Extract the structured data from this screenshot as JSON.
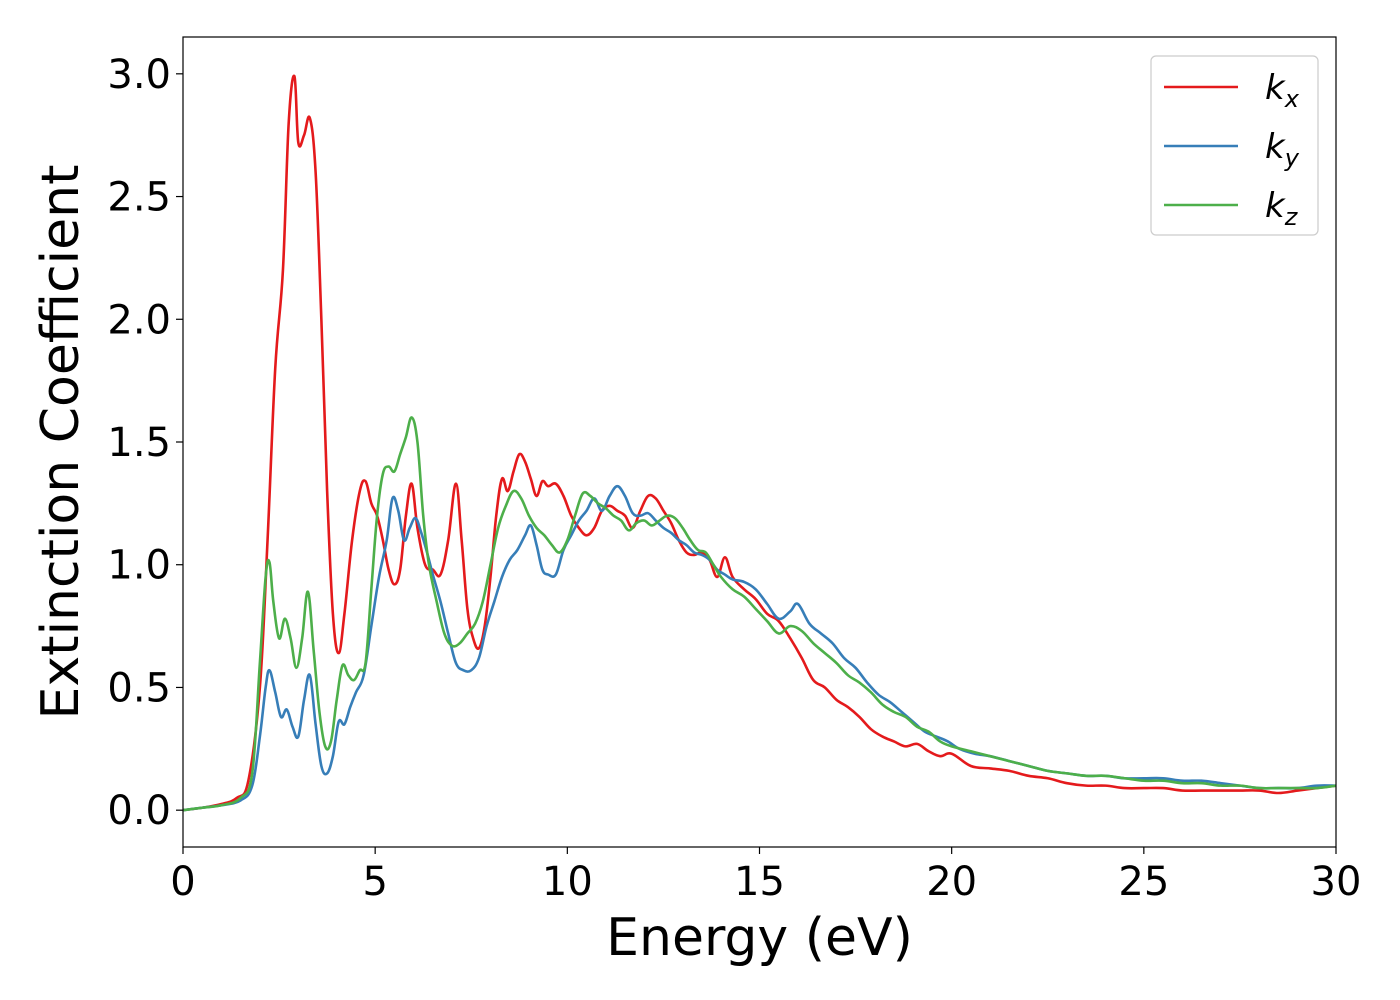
{
  "chart_data": {
    "type": "line",
    "xlabel": "Energy (eV)",
    "ylabel": "Extinction Coefficient",
    "xlim": [
      0,
      30
    ],
    "ylim": [
      -0.15,
      3.15
    ],
    "xticks": [
      0,
      5,
      10,
      15,
      20,
      25,
      30
    ],
    "xtick_labels": [
      "0",
      "5",
      "10",
      "15",
      "20",
      "25",
      "30"
    ],
    "yticks": [
      0.0,
      0.5,
      1.0,
      1.5,
      2.0,
      2.5,
      3.0
    ],
    "ytick_labels": [
      "0.0",
      "0.5",
      "1.0",
      "1.5",
      "2.0",
      "2.5",
      "3.0"
    ],
    "grid": false,
    "legend_position": "top-right",
    "series": [
      {
        "name": "k",
        "subscript": "x",
        "color": "#e41a1c",
        "x": [
          0,
          0.5,
          1.0,
          1.4,
          1.7,
          2.0,
          2.2,
          2.4,
          2.6,
          2.75,
          2.9,
          3.0,
          3.15,
          3.3,
          3.45,
          3.6,
          3.75,
          3.9,
          4.05,
          4.2,
          4.4,
          4.6,
          4.75,
          4.9,
          5.05,
          5.2,
          5.35,
          5.5,
          5.65,
          5.8,
          5.95,
          6.1,
          6.3,
          6.5,
          6.7,
          6.9,
          7.1,
          7.25,
          7.4,
          7.55,
          7.7,
          7.85,
          8.0,
          8.15,
          8.3,
          8.45,
          8.6,
          8.75,
          8.9,
          9.05,
          9.2,
          9.35,
          9.5,
          9.7,
          9.9,
          10.1,
          10.3,
          10.5,
          10.7,
          10.9,
          11.1,
          11.3,
          11.5,
          11.7,
          11.9,
          12.1,
          12.3,
          12.5,
          12.7,
          12.9,
          13.1,
          13.3,
          13.5,
          13.7,
          13.9,
          14.1,
          14.3,
          14.6,
          14.9,
          15.2,
          15.5,
          15.8,
          16.1,
          16.4,
          16.7,
          17.0,
          17.3,
          17.6,
          17.9,
          18.2,
          18.5,
          18.8,
          19.1,
          19.4,
          19.7,
          20.0,
          20.5,
          21.0,
          21.5,
          22.0,
          22.5,
          23.0,
          23.5,
          24.0,
          24.5,
          25.0,
          25.5,
          26.0,
          26.5,
          27.0,
          27.5,
          28.0,
          28.5,
          29.0,
          29.5,
          30.0
        ],
        "values": [
          0.0,
          0.01,
          0.025,
          0.05,
          0.12,
          0.5,
          1.1,
          1.8,
          2.2,
          2.8,
          2.99,
          2.72,
          2.75,
          2.82,
          2.6,
          2.0,
          1.3,
          0.8,
          0.64,
          0.8,
          1.1,
          1.3,
          1.34,
          1.25,
          1.2,
          1.1,
          0.98,
          0.92,
          0.98,
          1.2,
          1.33,
          1.15,
          1.0,
          0.98,
          0.96,
          1.1,
          1.33,
          1.1,
          0.82,
          0.7,
          0.66,
          0.75,
          0.95,
          1.2,
          1.35,
          1.3,
          1.38,
          1.45,
          1.42,
          1.35,
          1.28,
          1.34,
          1.32,
          1.33,
          1.28,
          1.2,
          1.15,
          1.12,
          1.15,
          1.22,
          1.24,
          1.22,
          1.2,
          1.15,
          1.22,
          1.28,
          1.27,
          1.22,
          1.17,
          1.1,
          1.05,
          1.04,
          1.05,
          1.02,
          0.95,
          1.03,
          0.95,
          0.9,
          0.86,
          0.8,
          0.77,
          0.7,
          0.62,
          0.53,
          0.5,
          0.45,
          0.42,
          0.38,
          0.33,
          0.3,
          0.28,
          0.26,
          0.27,
          0.24,
          0.22,
          0.23,
          0.18,
          0.17,
          0.16,
          0.14,
          0.13,
          0.11,
          0.1,
          0.1,
          0.09,
          0.09,
          0.09,
          0.08,
          0.08,
          0.08,
          0.08,
          0.08,
          0.07,
          0.08,
          0.09,
          0.1
        ]
      },
      {
        "name": "k",
        "subscript": "y",
        "color": "#377eb8",
        "x": [
          0,
          0.5,
          1.0,
          1.5,
          1.8,
          2.0,
          2.15,
          2.25,
          2.4,
          2.55,
          2.7,
          2.85,
          3.0,
          3.15,
          3.3,
          3.45,
          3.6,
          3.75,
          3.9,
          4.05,
          4.2,
          4.35,
          4.5,
          4.7,
          4.9,
          5.1,
          5.3,
          5.45,
          5.6,
          5.75,
          5.9,
          6.05,
          6.2,
          6.35,
          6.5,
          6.7,
          6.9,
          7.1,
          7.3,
          7.5,
          7.7,
          7.9,
          8.1,
          8.3,
          8.5,
          8.7,
          8.9,
          9.05,
          9.2,
          9.35,
          9.5,
          9.7,
          9.9,
          10.1,
          10.3,
          10.5,
          10.7,
          10.9,
          11.1,
          11.3,
          11.5,
          11.7,
          11.9,
          12.1,
          12.3,
          12.5,
          12.7,
          12.9,
          13.1,
          13.3,
          13.5,
          13.7,
          13.9,
          14.1,
          14.3,
          14.6,
          14.9,
          15.2,
          15.5,
          15.8,
          16.0,
          16.3,
          16.6,
          16.9,
          17.2,
          17.5,
          17.8,
          18.1,
          18.4,
          18.7,
          19.0,
          19.3,
          19.6,
          19.9,
          20.2,
          20.6,
          21.0,
          21.5,
          22.0,
          22.5,
          23.0,
          23.5,
          24.0,
          24.5,
          25.0,
          25.5,
          26.0,
          26.5,
          27.0,
          27.5,
          28.0,
          28.5,
          29.0,
          29.5,
          30.0
        ],
        "values": [
          0.0,
          0.01,
          0.02,
          0.04,
          0.1,
          0.3,
          0.5,
          0.57,
          0.48,
          0.38,
          0.41,
          0.34,
          0.3,
          0.45,
          0.55,
          0.35,
          0.18,
          0.15,
          0.22,
          0.36,
          0.35,
          0.42,
          0.48,
          0.55,
          0.75,
          0.95,
          1.1,
          1.27,
          1.22,
          1.1,
          1.15,
          1.19,
          1.13,
          1.05,
          0.96,
          0.85,
          0.72,
          0.6,
          0.57,
          0.57,
          0.62,
          0.75,
          0.85,
          0.95,
          1.02,
          1.06,
          1.12,
          1.16,
          1.08,
          0.98,
          0.96,
          0.96,
          1.06,
          1.12,
          1.18,
          1.22,
          1.27,
          1.22,
          1.28,
          1.32,
          1.28,
          1.21,
          1.2,
          1.21,
          1.18,
          1.15,
          1.13,
          1.1,
          1.08,
          1.05,
          1.04,
          1.02,
          0.98,
          0.96,
          0.94,
          0.93,
          0.9,
          0.84,
          0.78,
          0.81,
          0.84,
          0.76,
          0.72,
          0.68,
          0.62,
          0.58,
          0.52,
          0.47,
          0.44,
          0.4,
          0.36,
          0.32,
          0.3,
          0.28,
          0.25,
          0.23,
          0.22,
          0.2,
          0.18,
          0.16,
          0.15,
          0.14,
          0.14,
          0.13,
          0.13,
          0.13,
          0.12,
          0.12,
          0.11,
          0.1,
          0.09,
          0.09,
          0.09,
          0.1,
          0.1
        ]
      },
      {
        "name": "k",
        "subscript": "z",
        "color": "#4daf4a",
        "x": [
          0,
          0.5,
          1.0,
          1.5,
          1.8,
          2.0,
          2.15,
          2.25,
          2.35,
          2.5,
          2.65,
          2.8,
          2.95,
          3.1,
          3.25,
          3.4,
          3.55,
          3.7,
          3.85,
          4.0,
          4.15,
          4.3,
          4.45,
          4.6,
          4.75,
          4.9,
          5.05,
          5.2,
          5.35,
          5.5,
          5.65,
          5.8,
          5.95,
          6.1,
          6.25,
          6.4,
          6.6,
          6.8,
          7.0,
          7.2,
          7.4,
          7.6,
          7.8,
          8.0,
          8.2,
          8.4,
          8.6,
          8.8,
          9.0,
          9.2,
          9.4,
          9.6,
          9.8,
          10.0,
          10.2,
          10.4,
          10.6,
          10.8,
          11.0,
          11.2,
          11.4,
          11.6,
          11.8,
          12.0,
          12.2,
          12.4,
          12.6,
          12.8,
          13.0,
          13.2,
          13.4,
          13.6,
          13.8,
          14.0,
          14.3,
          14.6,
          14.9,
          15.2,
          15.5,
          15.8,
          16.1,
          16.4,
          16.7,
          17.0,
          17.3,
          17.6,
          17.9,
          18.2,
          18.5,
          18.8,
          19.1,
          19.4,
          19.7,
          20.0,
          20.5,
          21.0,
          21.5,
          22.0,
          22.5,
          23.0,
          23.5,
          24.0,
          24.5,
          25.0,
          25.5,
          26.0,
          26.5,
          27.0,
          27.5,
          28.0,
          28.5,
          29.0,
          29.5,
          30.0
        ],
        "values": [
          0.0,
          0.01,
          0.02,
          0.05,
          0.15,
          0.6,
          0.95,
          1.01,
          0.85,
          0.7,
          0.78,
          0.7,
          0.58,
          0.7,
          0.89,
          0.65,
          0.4,
          0.26,
          0.28,
          0.45,
          0.59,
          0.55,
          0.53,
          0.57,
          0.6,
          0.9,
          1.2,
          1.37,
          1.4,
          1.38,
          1.45,
          1.52,
          1.6,
          1.5,
          1.2,
          1.0,
          0.85,
          0.72,
          0.67,
          0.68,
          0.72,
          0.76,
          0.85,
          1.0,
          1.15,
          1.24,
          1.3,
          1.27,
          1.2,
          1.15,
          1.12,
          1.08,
          1.05,
          1.1,
          1.2,
          1.29,
          1.28,
          1.25,
          1.23,
          1.2,
          1.18,
          1.14,
          1.17,
          1.18,
          1.16,
          1.18,
          1.2,
          1.19,
          1.15,
          1.1,
          1.06,
          1.05,
          1.0,
          0.95,
          0.9,
          0.87,
          0.82,
          0.77,
          0.72,
          0.75,
          0.73,
          0.68,
          0.64,
          0.6,
          0.55,
          0.52,
          0.48,
          0.43,
          0.4,
          0.38,
          0.34,
          0.32,
          0.28,
          0.26,
          0.24,
          0.22,
          0.2,
          0.18,
          0.16,
          0.15,
          0.14,
          0.14,
          0.13,
          0.12,
          0.12,
          0.11,
          0.11,
          0.1,
          0.1,
          0.09,
          0.09,
          0.09,
          0.09,
          0.1
        ]
      }
    ]
  }
}
